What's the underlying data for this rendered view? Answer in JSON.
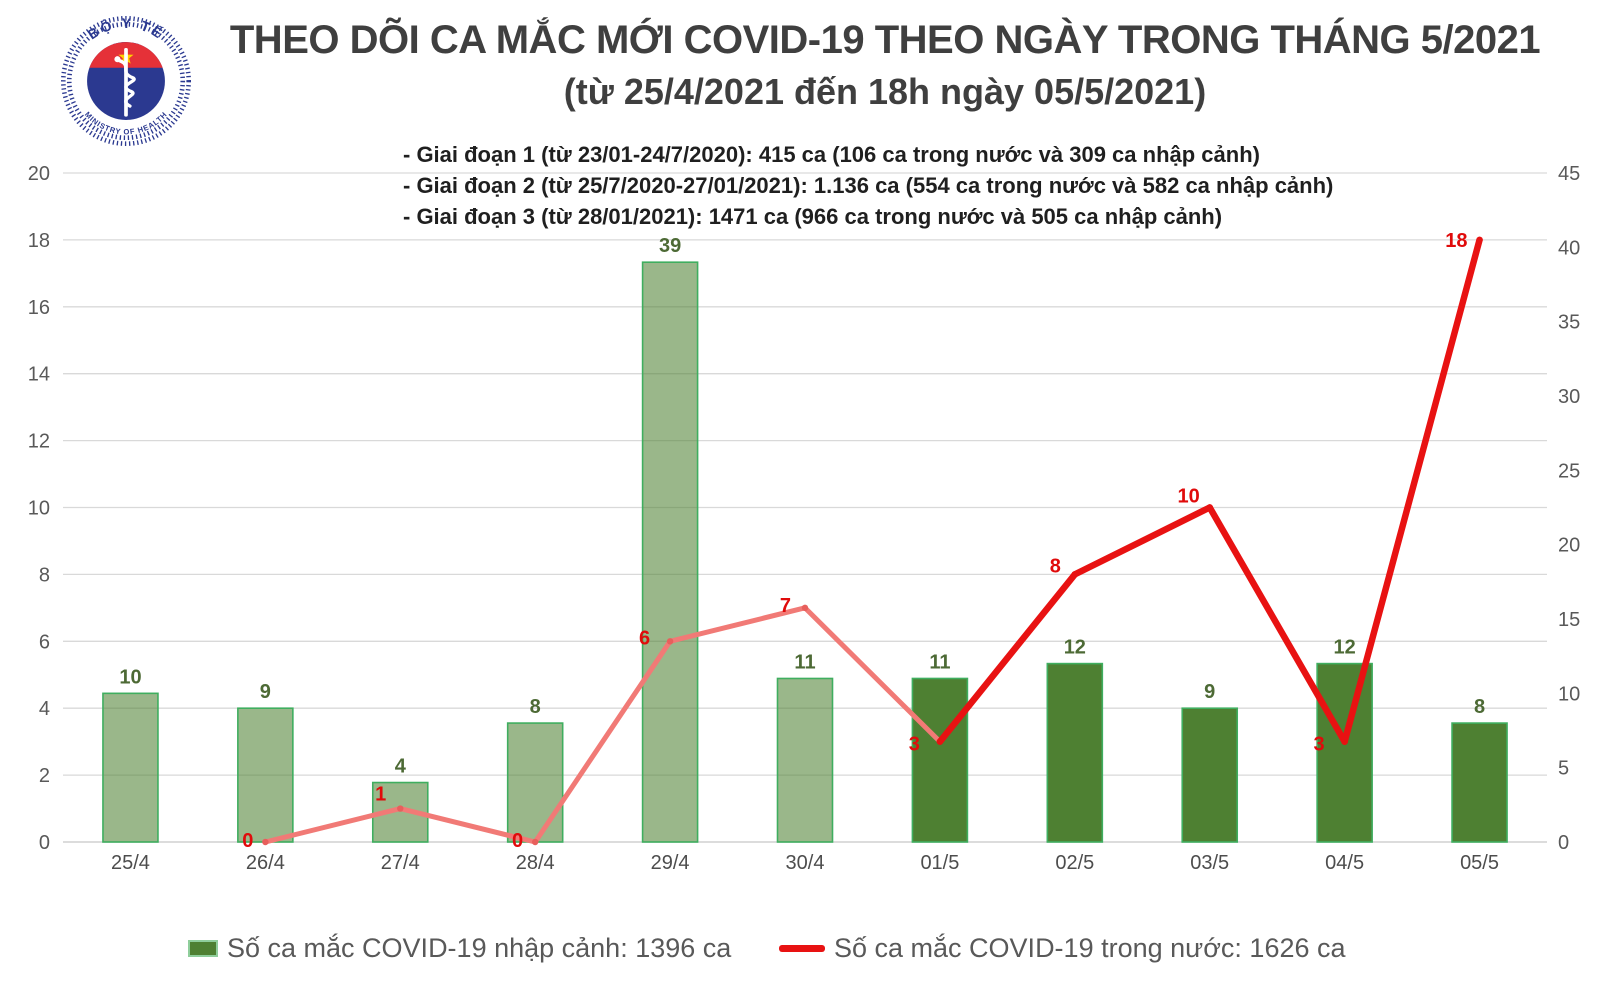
{
  "header": {
    "title_line1": "THEO DÕI CA MẮC MỚI COVID-19 THEO NGÀY TRONG THÁNG 5/2021",
    "title_line2": "(từ 25/4/2021 đến 18h ngày 05/5/2021)",
    "logo": {
      "top_text": "BỘ Y TẾ",
      "bottom_text": "MINISTRY OF HEALTH"
    }
  },
  "annotations": {
    "line1": "- Giai đoạn 1 (từ 23/01-24/7/2020): 415 ca (106 ca trong nước và 309 ca nhập cảnh)",
    "line2": "- Giai đoạn 2 (từ 25/7/2020-27/01/2021): 1.136 ca (554 ca trong nước và 582 ca nhập cảnh)",
    "line3": "- Giai đoạn 3 (từ 28/01/2021): 1471 ca (966 ca trong nước và 505 ca nhập cảnh)"
  },
  "chart_data": {
    "type": "bar+line combo",
    "categories": [
      "25/4",
      "26/4",
      "27/4",
      "28/4",
      "29/4",
      "30/4",
      "01/5",
      "02/5",
      "03/5",
      "04/5",
      "05/5"
    ],
    "series": [
      {
        "name": "Số ca mắc COVID-19 nhập cảnh",
        "type": "bar",
        "axis": "right",
        "total": 1396,
        "values": [
          10,
          9,
          4,
          8,
          39,
          11,
          11,
          12,
          9,
          12,
          8
        ],
        "bar_styles": [
          "light",
          "light",
          "light",
          "light",
          "light",
          "light",
          "dark",
          "dark",
          "dark",
          "dark",
          "dark"
        ]
      },
      {
        "name": "Số ca mắc COVID-19 trong nước",
        "type": "line",
        "axis": "left",
        "total": 1626,
        "values": [
          null,
          0,
          1,
          0,
          6,
          7,
          3,
          8,
          10,
          3,
          18
        ]
      }
    ],
    "left_axis": {
      "min": 0,
      "max": 20,
      "step": 2
    },
    "right_axis": {
      "min": 0,
      "max": 45,
      "step": 5
    },
    "line_color_split_index": 6,
    "grid": true,
    "legend_position": "bottom"
  },
  "legend": {
    "imported": "Số ca mắc COVID-19 nhập cảnh: 1396 ca",
    "domestic": "Số ca mắc COVID-19 trong nước: 1626 ca"
  },
  "colors": {
    "bar_fill": "#4e8032",
    "bar_light_opacity": 0.57,
    "bar_border": "#3fae5f",
    "bar_label": "#4d6a35",
    "line_early": "#f17a76",
    "line_marker_early": "#e85f5c",
    "line_late": "#e81212",
    "line_label": "#e00b0b",
    "grid": "#d9d9d9",
    "axis_line": "#c6c6c6",
    "tick_label": "#595959",
    "x_label": "#4d4d4d",
    "title": "#3f3f3f",
    "annotation": "#1f1f1f",
    "legend_text": "#595959",
    "logo_blue": "#2b3990",
    "logo_red": "#e53138",
    "logo_star": "#ffd100"
  }
}
